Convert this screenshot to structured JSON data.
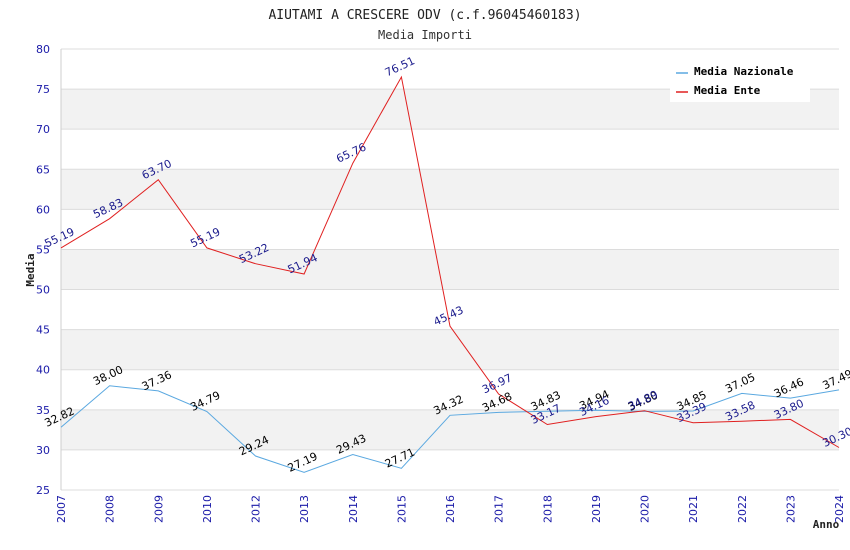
{
  "chart_data": {
    "type": "line",
    "title": "AIUTAMI A CRESCERE ODV (c.f.96045460183)",
    "subtitle": "Media Importi",
    "xlabel": "Anno",
    "ylabel": "Media",
    "ylim": [
      25,
      80
    ],
    "yticks": [
      25,
      30,
      35,
      40,
      45,
      50,
      55,
      60,
      65,
      70,
      75,
      80
    ],
    "grid": true,
    "legend_position": "top-right",
    "categories": [
      "2007",
      "2008",
      "2009",
      "2010",
      "2012",
      "2013",
      "2014",
      "2015",
      "2016",
      "2017",
      "2018",
      "2019",
      "2020",
      "2021",
      "2022",
      "2023",
      "2024"
    ],
    "series": [
      {
        "name": "Media Nazionale",
        "color": "#5aa8e0",
        "label_color": "#000000",
        "values": [
          32.82,
          38.0,
          37.36,
          34.79,
          29.24,
          27.19,
          29.43,
          27.71,
          34.32,
          34.68,
          34.83,
          34.94,
          34.8,
          34.85,
          37.05,
          36.46,
          37.49
        ]
      },
      {
        "name": "Media Ente",
        "color": "#e02020",
        "label_color": "#1a1a8c",
        "values": [
          55.19,
          58.83,
          63.7,
          55.19,
          53.22,
          51.94,
          65.76,
          76.51,
          45.43,
          36.97,
          33.17,
          34.16,
          34.89,
          33.39,
          33.58,
          33.8,
          30.3
        ]
      }
    ]
  }
}
